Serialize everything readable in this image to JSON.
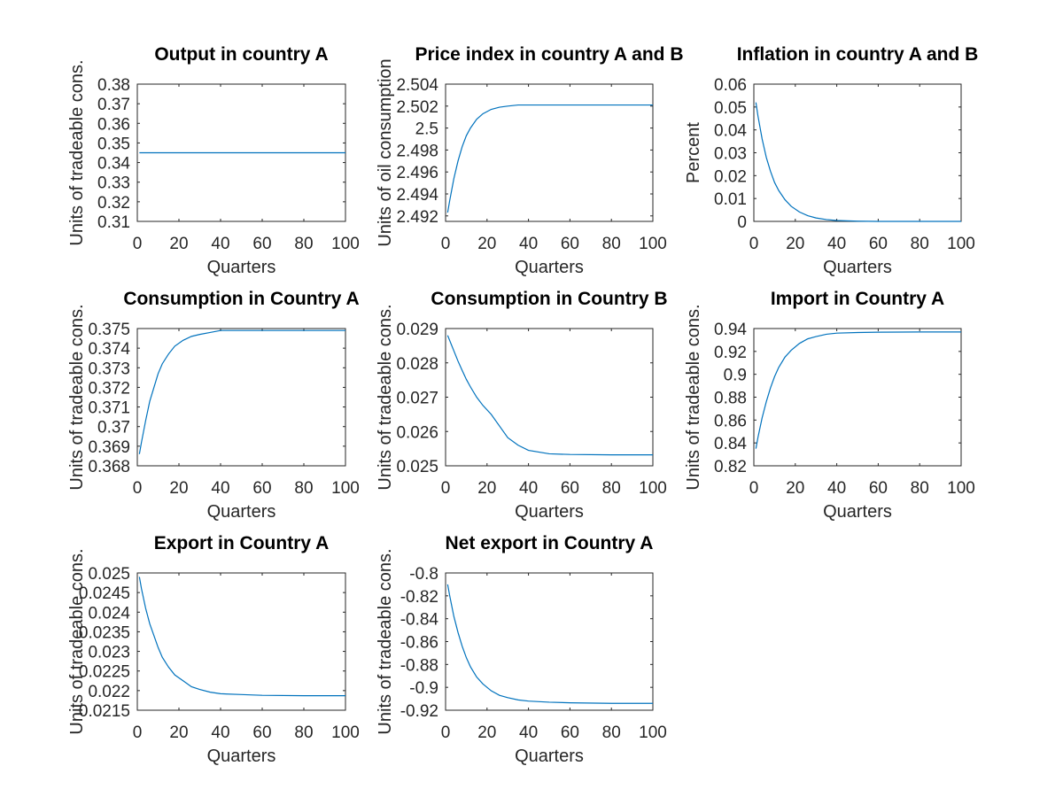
{
  "chart_data": [
    {
      "type": "line",
      "title": "Output in country A",
      "xlabel": "Quarters",
      "ylabel": "Units of tradeable cons.",
      "xlim": [
        0,
        100
      ],
      "ylim": [
        0.31,
        0.38
      ],
      "x_ticks": [
        0,
        20,
        40,
        60,
        80,
        100
      ],
      "x_tick_labels": [
        "0",
        "20",
        "40",
        "60",
        "80",
        "100"
      ],
      "y_ticks": [
        0.31,
        0.32,
        0.33,
        0.34,
        0.35,
        0.36,
        0.37,
        0.38
      ],
      "y_tick_labels": [
        "0.31",
        "0.32",
        "0.33",
        "0.34",
        "0.35",
        "0.36",
        "0.37",
        "0.38"
      ],
      "grid": false,
      "series": [
        {
          "color": "#0072bd",
          "x": [
            1,
            100
          ],
          "y": [
            0.345,
            0.345
          ]
        }
      ]
    },
    {
      "type": "line",
      "title": "Price index in country A and B",
      "xlabel": "Quarters",
      "ylabel": "Units of oil consumption",
      "xlim": [
        0,
        100
      ],
      "ylim": [
        2.4915,
        2.504
      ],
      "x_ticks": [
        0,
        20,
        40,
        60,
        80,
        100
      ],
      "x_tick_labels": [
        "0",
        "20",
        "40",
        "60",
        "80",
        "100"
      ],
      "y_ticks": [
        2.492,
        2.494,
        2.496,
        2.498,
        2.5,
        2.502,
        2.504
      ],
      "y_tick_labels": [
        "2.492",
        "2.494",
        "2.496",
        "2.498",
        "2.5",
        "2.502",
        "2.504"
      ],
      "grid": false,
      "series": [
        {
          "color": "#0072bd",
          "x": [
            1,
            2,
            4,
            6,
            8,
            10,
            12,
            15,
            18,
            22,
            26,
            30,
            35,
            40,
            50,
            60,
            80,
            100
          ],
          "y": [
            2.4923,
            2.4934,
            2.4954,
            2.497,
            2.4983,
            2.4993,
            2.5,
            2.5008,
            2.5013,
            2.5017,
            2.5019,
            2.502,
            2.5021,
            2.5021,
            2.5021,
            2.5021,
            2.5021,
            2.5021
          ]
        }
      ]
    },
    {
      "type": "line",
      "title": "Inflation in country A and B",
      "xlabel": "Quarters",
      "ylabel": "Percent",
      "xlim": [
        0,
        100
      ],
      "ylim": [
        0,
        0.06
      ],
      "x_ticks": [
        0,
        20,
        40,
        60,
        80,
        100
      ],
      "x_tick_labels": [
        "0",
        "20",
        "40",
        "60",
        "80",
        "100"
      ],
      "y_ticks": [
        0,
        0.01,
        0.02,
        0.03,
        0.04,
        0.05,
        0.06
      ],
      "y_tick_labels": [
        "0",
        "0.01",
        "0.02",
        "0.03",
        "0.04",
        "0.05",
        "0.06"
      ],
      "grid": false,
      "series": [
        {
          "color": "#0072bd",
          "x": [
            1,
            2,
            4,
            6,
            8,
            10,
            12,
            15,
            18,
            22,
            26,
            30,
            35,
            40,
            50,
            60,
            80,
            100
          ],
          "y": [
            0.052,
            0.046,
            0.036,
            0.028,
            0.022,
            0.017,
            0.0135,
            0.0095,
            0.0066,
            0.0041,
            0.0025,
            0.0015,
            0.0008,
            0.0004,
            0.0001,
            0.0,
            0.0,
            0.0
          ]
        }
      ]
    },
    {
      "type": "line",
      "title": "Consumption in Country A",
      "xlabel": "Quarters",
      "ylabel": "Units of tradeable cons.",
      "xlim": [
        0,
        100
      ],
      "ylim": [
        0.368,
        0.375
      ],
      "x_ticks": [
        0,
        20,
        40,
        60,
        80,
        100
      ],
      "x_tick_labels": [
        "0",
        "20",
        "40",
        "60",
        "80",
        "100"
      ],
      "y_ticks": [
        0.368,
        0.369,
        0.37,
        0.371,
        0.372,
        0.373,
        0.374,
        0.375
      ],
      "y_tick_labels": [
        "0.368",
        "0.369",
        "0.37",
        "0.371",
        "0.372",
        "0.373",
        "0.374",
        "0.375"
      ],
      "grid": false,
      "series": [
        {
          "color": "#0072bd",
          "x": [
            1,
            2,
            4,
            6,
            8,
            10,
            12,
            15,
            18,
            22,
            26,
            30,
            35,
            40,
            50,
            60,
            80,
            100
          ],
          "y": [
            0.3686,
            0.3692,
            0.3703,
            0.3713,
            0.372,
            0.3727,
            0.3732,
            0.3737,
            0.3741,
            0.3744,
            0.3746,
            0.3747,
            0.3748,
            0.3749,
            0.3749,
            0.3749,
            0.3749,
            0.3749
          ]
        }
      ]
    },
    {
      "type": "line",
      "title": "Consumption in Country B",
      "xlabel": "Quarters",
      "ylabel": "Units of tradeable cons.",
      "xlim": [
        0,
        100
      ],
      "ylim": [
        0.025,
        0.029
      ],
      "x_ticks": [
        0,
        20,
        40,
        60,
        80,
        100
      ],
      "x_tick_labels": [
        "0",
        "20",
        "40",
        "60",
        "80",
        "100"
      ],
      "y_ticks": [
        0.025,
        0.026,
        0.027,
        0.028,
        0.029
      ],
      "y_tick_labels": [
        "0.025",
        "0.026",
        "0.027",
        "0.028",
        "0.029"
      ],
      "grid": false,
      "series": [
        {
          "color": "#0072bd",
          "x": [
            1,
            2,
            4,
            6,
            8,
            10,
            12,
            15,
            18,
            22,
            26,
            30,
            35,
            40,
            50,
            60,
            80,
            100
          ],
          "y": [
            0.0288,
            0.02865,
            0.02835,
            0.02805,
            0.02778,
            0.02752,
            0.0273,
            0.027,
            0.02676,
            0.0265,
            0.02616,
            0.02582,
            0.0256,
            0.02545,
            0.02535,
            0.02533,
            0.02532,
            0.02532
          ]
        }
      ]
    },
    {
      "type": "line",
      "title": "Import in Country A",
      "xlabel": "Quarters",
      "ylabel": "Units of tradeable cons.",
      "xlim": [
        0,
        100
      ],
      "ylim": [
        0.82,
        0.94
      ],
      "x_ticks": [
        0,
        20,
        40,
        60,
        80,
        100
      ],
      "x_tick_labels": [
        "0",
        "20",
        "40",
        "60",
        "80",
        "100"
      ],
      "y_ticks": [
        0.82,
        0.84,
        0.86,
        0.88,
        0.9,
        0.92,
        0.94
      ],
      "y_tick_labels": [
        "0.82",
        "0.84",
        "0.86",
        "0.88",
        "0.9",
        "0.92",
        "0.94"
      ],
      "grid": false,
      "series": [
        {
          "color": "#0072bd",
          "x": [
            1,
            2,
            4,
            6,
            8,
            10,
            12,
            15,
            18,
            22,
            26,
            30,
            35,
            40,
            50,
            60,
            80,
            100
          ],
          "y": [
            0.835,
            0.845,
            0.862,
            0.876,
            0.888,
            0.898,
            0.906,
            0.915,
            0.921,
            0.927,
            0.931,
            0.933,
            0.935,
            0.936,
            0.9365,
            0.9368,
            0.937,
            0.937
          ]
        }
      ]
    },
    {
      "type": "line",
      "title": "Export in Country A",
      "xlabel": "Quarters",
      "ylabel": "Units of tradeable cons.",
      "xlim": [
        0,
        100
      ],
      "ylim": [
        0.0215,
        0.025
      ],
      "x_ticks": [
        0,
        20,
        40,
        60,
        80,
        100
      ],
      "x_tick_labels": [
        "0",
        "20",
        "40",
        "60",
        "80",
        "100"
      ],
      "y_ticks": [
        0.0215,
        0.022,
        0.0225,
        0.023,
        0.0235,
        0.024,
        0.0245,
        0.025
      ],
      "y_tick_labels": [
        "0.0215",
        "0.022",
        "0.0225",
        "0.023",
        "0.0235",
        "0.024",
        "0.0245",
        "0.025"
      ],
      "grid": false,
      "series": [
        {
          "color": "#0072bd",
          "x": [
            1,
            2,
            4,
            6,
            8,
            10,
            12,
            15,
            18,
            22,
            26,
            30,
            35,
            40,
            50,
            60,
            80,
            100
          ],
          "y": [
            0.0249,
            0.0246,
            0.0241,
            0.0237,
            0.0234,
            0.0231,
            0.02285,
            0.0226,
            0.0224,
            0.02225,
            0.0221,
            0.02203,
            0.02196,
            0.02192,
            0.0219,
            0.02188,
            0.02187,
            0.02187
          ]
        }
      ]
    },
    {
      "type": "line",
      "title": "Net export in Country A",
      "xlabel": "Quarters",
      "ylabel": "Units of tradeable cons.",
      "xlim": [
        0,
        100
      ],
      "ylim": [
        -0.92,
        -0.8
      ],
      "x_ticks": [
        0,
        20,
        40,
        60,
        80,
        100
      ],
      "x_tick_labels": [
        "0",
        "20",
        "40",
        "60",
        "80",
        "100"
      ],
      "y_ticks": [
        -0.92,
        -0.9,
        -0.88,
        -0.86,
        -0.84,
        -0.82,
        -0.8
      ],
      "y_tick_labels": [
        "-0.92",
        "-0.9",
        "-0.88",
        "-0.86",
        "-0.84",
        "-0.82",
        "-0.8"
      ],
      "grid": false,
      "series": [
        {
          "color": "#0072bd",
          "x": [
            1,
            2,
            4,
            6,
            8,
            10,
            12,
            15,
            18,
            22,
            26,
            30,
            35,
            40,
            50,
            60,
            80,
            100
          ],
          "y": [
            -0.81,
            -0.82,
            -0.838,
            -0.852,
            -0.864,
            -0.874,
            -0.882,
            -0.891,
            -0.897,
            -0.903,
            -0.907,
            -0.909,
            -0.911,
            -0.912,
            -0.913,
            -0.9135,
            -0.914,
            -0.914
          ]
        }
      ]
    }
  ]
}
